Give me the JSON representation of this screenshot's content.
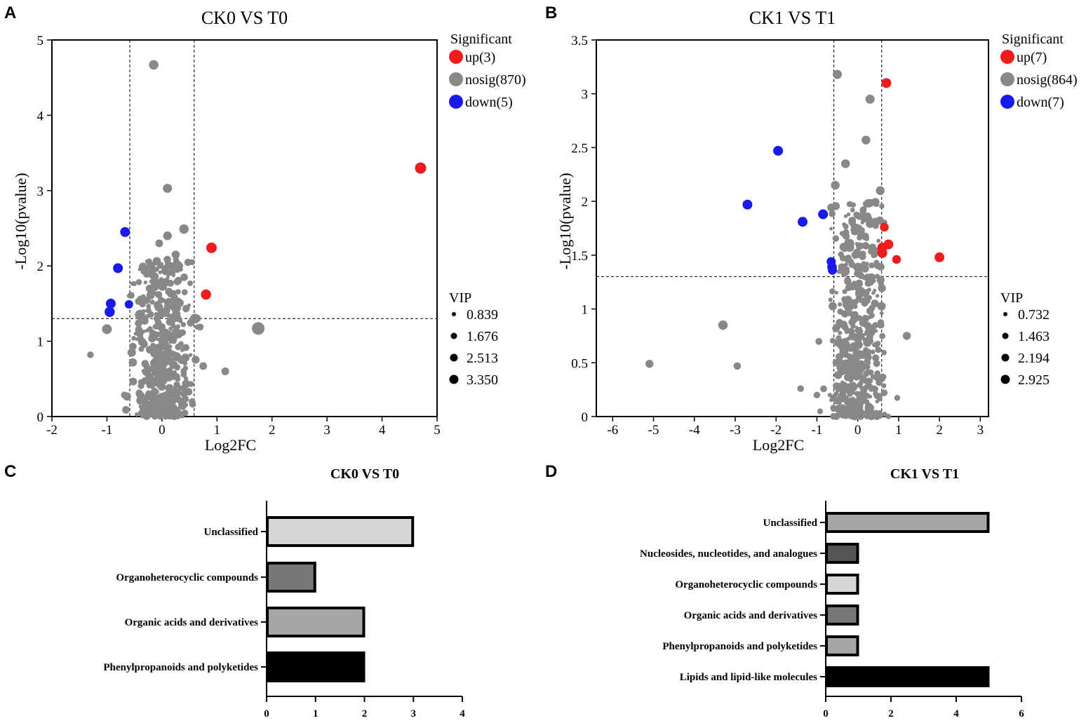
{
  "chart_data": [
    {
      "panel": "A",
      "type": "scatter",
      "title": "CK0 VS T0",
      "xlabel": "Log2FC",
      "ylabel": "-Log10(pvalue)",
      "xlim": [
        -2,
        5
      ],
      "ylim": [
        0,
        5
      ],
      "xticks": [
        -2,
        -1,
        0,
        1,
        2,
        3,
        4,
        5
      ],
      "yticks": [
        0,
        1,
        2,
        3,
        4,
        5
      ],
      "fc_threshold": [
        -0.585,
        0.585
      ],
      "p_threshold": 1.301,
      "legend_title": "Significant",
      "series": [
        {
          "name": "up(3)",
          "color": "#ee1c1c",
          "points": [
            [
              4.7,
              3.3,
              2.2
            ],
            [
              0.9,
              2.24,
              2.0
            ],
            [
              0.8,
              1.62,
              1.9
            ]
          ]
        },
        {
          "name": "nosig(870)",
          "color": "#888888",
          "points": [
            [
              -0.15,
              4.67,
              1.7
            ],
            [
              0.1,
              3.03,
              1.6
            ],
            [
              0.4,
              2.49,
              1.7
            ],
            [
              1.75,
              1.17,
              2.6
            ],
            [
              -0.2,
              2.0,
              1.5
            ],
            [
              0.25,
              2.15,
              1.3
            ],
            [
              -0.4,
              1.35,
              1.9
            ],
            [
              0.3,
              1.1,
              1.6
            ],
            [
              0.6,
              1.3,
              1.8
            ],
            [
              -1.0,
              1.16,
              1.8
            ],
            [
              -1.3,
              0.82,
              0.9
            ],
            [
              1.15,
              0.6,
              1.2
            ],
            [
              -0.55,
              0.85,
              1.4
            ],
            [
              0.75,
              0.67,
              1.2
            ],
            [
              0.1,
              2.4,
              1.5
            ],
            [
              -0.05,
              2.3,
              1.2
            ]
          ]
        },
        {
          "name": "down(5)",
          "color": "#1a1aee",
          "points": [
            [
              -0.67,
              2.45,
              1.8
            ],
            [
              -0.8,
              1.97,
              1.8
            ],
            [
              -0.93,
              1.5,
              1.8
            ],
            [
              -0.95,
              1.39,
              1.9
            ],
            [
              -0.6,
              1.49,
              1.4
            ]
          ]
        }
      ],
      "size_legend_title": "VIP",
      "size_legend_values": [
        "0.839",
        "1.676",
        "2.513",
        "3.350"
      ]
    },
    {
      "panel": "B",
      "type": "scatter",
      "title": "CK1 VS T1",
      "xlabel": "Log2FC",
      "ylabel": "-Log10(pvalue)",
      "xlim": [
        -6.4,
        3.2
      ],
      "ylim": [
        0,
        3.5
      ],
      "xticks": [
        -6,
        -5,
        -4,
        -3,
        -2,
        -1,
        0,
        1,
        2,
        3
      ],
      "yticks": [
        0,
        0.5,
        1,
        1.5,
        2,
        2.5,
        3,
        3.5
      ],
      "fc_threshold": [
        -0.585,
        0.585
      ],
      "p_threshold": 1.301,
      "legend_title": "Significant",
      "series": [
        {
          "name": "up(7)",
          "color": "#ee1c1c",
          "points": [
            [
              0.7,
              3.1,
              1.8
            ],
            [
              0.65,
              1.76,
              1.5
            ],
            [
              0.75,
              1.6,
              1.8
            ],
            [
              0.6,
              1.57,
              1.8
            ],
            [
              0.6,
              1.52,
              1.8
            ],
            [
              2.0,
              1.48,
              1.8
            ],
            [
              0.95,
              1.46,
              1.5
            ]
          ]
        },
        {
          "name": "nosig(864)",
          "color": "#888888",
          "points": [
            [
              -0.5,
              3.18,
              1.6
            ],
            [
              0.3,
              2.95,
              1.6
            ],
            [
              0.2,
              2.57,
              1.5
            ],
            [
              -0.3,
              2.35,
              1.5
            ],
            [
              -0.55,
              2.15,
              1.5
            ],
            [
              -3.3,
              0.85,
              1.7
            ],
            [
              -5.1,
              0.49,
              1.3
            ],
            [
              -2.95,
              0.47,
              1.1
            ],
            [
              -1.4,
              0.26,
              0.9
            ],
            [
              -1.0,
              0.2,
              0.9
            ],
            [
              1.2,
              0.75,
              1.3
            ],
            [
              0.55,
              2.1,
              1.5
            ]
          ]
        },
        {
          "name": "down(7)",
          "color": "#1a1aee",
          "points": [
            [
              -1.95,
              2.47,
              1.8
            ],
            [
              -2.7,
              1.97,
              1.8
            ],
            [
              -0.85,
              1.88,
              1.8
            ],
            [
              -1.35,
              1.81,
              1.8
            ],
            [
              -0.65,
              1.44,
              1.6
            ],
            [
              -0.63,
              1.39,
              1.7
            ],
            [
              -0.62,
              1.36,
              1.6
            ]
          ]
        }
      ],
      "size_legend_title": "VIP",
      "size_legend_values": [
        "0.732",
        "1.463",
        "2.194",
        "2.925"
      ]
    },
    {
      "panel": "C",
      "type": "bar",
      "orientation": "horizontal",
      "title": "CK0 VS T0",
      "xlim": [
        0,
        4
      ],
      "xticks": [
        0,
        1,
        2,
        3,
        4
      ],
      "categories": [
        "Unclassified",
        "Organoheterocyclic compounds",
        "Organic acids and derivatives",
        "Phenylpropanoids and polyketides"
      ],
      "values": [
        3,
        1,
        2,
        2
      ],
      "colors": [
        "#d6d6d6",
        "#777777",
        "#a6a6a6",
        "#000000"
      ]
    },
    {
      "panel": "D",
      "type": "bar",
      "orientation": "horizontal",
      "title": "CK1 VS T1",
      "xlim": [
        0,
        6
      ],
      "xticks": [
        0,
        2,
        4,
        6
      ],
      "categories": [
        "Unclassified",
        "Nucleosides, nucleotides, and analogues",
        "Organoheterocyclic compounds",
        "Organic acids and derivatives",
        "Phenylpropanoids and polyketides",
        "Lipids and lipid-like molecules"
      ],
      "values": [
        5,
        1,
        1,
        1,
        1,
        5
      ],
      "colors": [
        "#a6a6a6",
        "#555555",
        "#d6d6d6",
        "#777777",
        "#a6a6a6",
        "#000000"
      ]
    }
  ]
}
